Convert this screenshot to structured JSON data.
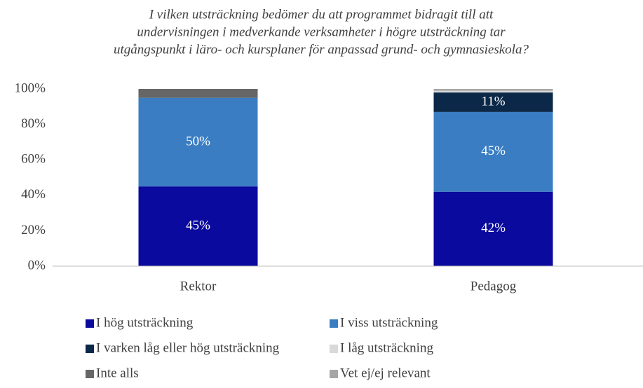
{
  "chart_data": {
    "type": "stacked_bar",
    "title": [
      "I vilken utsträckning bedömer du att programmet bidragit till att",
      "undervisningen i medverkande verksamheter i högre utsträckning tar",
      "utgångspunkt i läro- och kursplaner för anpassad grund- och gymnasieskola?"
    ],
    "categories": [
      "Rektor",
      "Pedagog"
    ],
    "series": [
      {
        "name": "I hög utsträckning",
        "color": "#0a0a9e",
        "values": [
          45,
          42
        ],
        "value_labels": [
          "45%",
          "42%"
        ]
      },
      {
        "name": "I viss utsträckning",
        "color": "#3a7dc2",
        "values": [
          50,
          45
        ],
        "value_labels": [
          "50%",
          "45%"
        ]
      },
      {
        "name": "I varken låg eller hög utsträckning",
        "color": "#0b2848",
        "values": [
          0,
          11
        ],
        "value_labels": [
          null,
          "11%"
        ]
      },
      {
        "name": "I låg utsträckning",
        "color": "#d9d9d9",
        "values": [
          0,
          1
        ]
      },
      {
        "name": "Inte alls",
        "color": "#666666",
        "values": [
          5,
          0
        ]
      },
      {
        "name": "Vet ej/ej relevant",
        "color": "#a6a6a6",
        "values": [
          0,
          1
        ]
      }
    ],
    "ylim": [
      0,
      100
    ],
    "yticks": [
      {
        "value": 0,
        "label": "0%"
      },
      {
        "value": 20,
        "label": "20%"
      },
      {
        "value": 40,
        "label": "40%"
      },
      {
        "value": 60,
        "label": "60%"
      },
      {
        "value": 80,
        "label": "80%"
      },
      {
        "value": 100,
        "label": "100%"
      }
    ],
    "grid": false
  }
}
